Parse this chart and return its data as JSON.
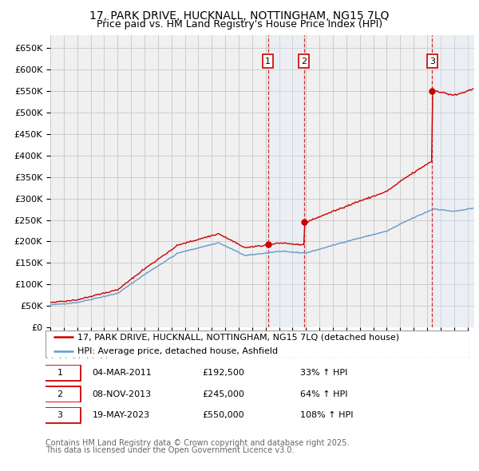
{
  "title": "17, PARK DRIVE, HUCKNALL, NOTTINGHAM, NG15 7LQ",
  "subtitle": "Price paid vs. HM Land Registry's House Price Index (HPI)",
  "ylim": [
    0,
    680000
  ],
  "yticks": [
    0,
    50000,
    100000,
    150000,
    200000,
    250000,
    300000,
    350000,
    400000,
    450000,
    500000,
    550000,
    600000,
    650000
  ],
  "ytick_labels": [
    "£0",
    "£50K",
    "£100K",
    "£150K",
    "£200K",
    "£250K",
    "£300K",
    "£350K",
    "£400K",
    "£450K",
    "£500K",
    "£550K",
    "£600K",
    "£650K"
  ],
  "xlim_start": 1995.0,
  "xlim_end": 2026.5,
  "red_line_color": "#cc0000",
  "blue_line_color": "#6699cc",
  "background_color": "#ffffff",
  "plot_bg_color": "#f0f0f0",
  "grid_color": "#cccccc",
  "shade_color": "#ddeeff",
  "sale_points": [
    {
      "year": 2011.17,
      "price": 192500,
      "label": "1",
      "date": "04-MAR-2011",
      "pct": "33%"
    },
    {
      "year": 2013.85,
      "price": 245000,
      "label": "2",
      "date": "08-NOV-2013",
      "pct": "64%"
    },
    {
      "year": 2023.38,
      "price": 550000,
      "label": "3",
      "date": "19-MAY-2023",
      "pct": "108%"
    }
  ],
  "legend_line1": "17, PARK DRIVE, HUCKNALL, NOTTINGHAM, NG15 7LQ (detached house)",
  "legend_line2": "HPI: Average price, detached house, Ashfield",
  "table_rows": [
    {
      "label": "1",
      "date": "04-MAR-2011",
      "price": "£192,500",
      "pct": "33% ↑ HPI"
    },
    {
      "label": "2",
      "date": "08-NOV-2013",
      "price": "£245,000",
      "pct": "64% ↑ HPI"
    },
    {
      "label": "3",
      "date": "19-MAY-2023",
      "price": "£550,000",
      "pct": "108% ↑ HPI"
    }
  ],
  "footer1": "Contains HM Land Registry data © Crown copyright and database right 2025.",
  "footer2": "This data is licensed under the Open Government Licence v3.0.",
  "title_fontsize": 10,
  "subtitle_fontsize": 9,
  "tick_fontsize": 8,
  "legend_fontsize": 8,
  "table_fontsize": 8,
  "footer_fontsize": 7
}
